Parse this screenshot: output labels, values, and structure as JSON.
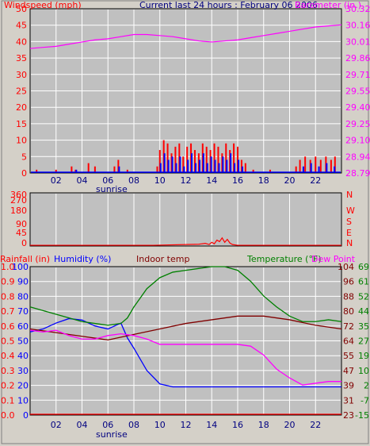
{
  "colors": {
    "window_bg": "#d4d0c8",
    "plot_bg": "#c0c0c0",
    "grid": "#ffffff",
    "wind_gust": "#ff0000",
    "wind_avg": "#0000ff",
    "barometer": "#ff00ff",
    "humidity": "#0000ff",
    "indoor_temp": "#800000",
    "temperature": "#008000",
    "dew_point": "#ff00ff",
    "rainfall": "#ff0000",
    "direction": "#ff0000"
  },
  "header": {
    "left_label": "Windspeed (mph)",
    "center_label": "Current last 24 hours : February 06 2006",
    "right_label": "Barometer (in.)"
  },
  "bottom_header": {
    "rain_label": "Rainfall (in)",
    "humidity_label": "Humidity (%)",
    "indoor_label": "Indoor temp",
    "temp_label": "Temperature (°F)",
    "dew_label": "Dew Point"
  },
  "x_ticks": [
    "02",
    "04",
    "06",
    "08",
    "10",
    "12",
    "14",
    "16",
    "18",
    "20",
    "22"
  ],
  "sunrise_label": "sunrise",
  "chart_data": [
    {
      "type": "line",
      "name_hint": "wind and barometer",
      "x_range": [
        0,
        24
      ],
      "y_left": {
        "label": "Windspeed (mph)",
        "ticks": [
          "0",
          "5",
          "10",
          "15",
          "20",
          "25",
          "30",
          "35",
          "40",
          "45",
          "50"
        ],
        "ylim": [
          0,
          50
        ]
      },
      "y_right": {
        "label": "Barometer (in.)",
        "ticks": [
          "28.79",
          "28.94",
          "29.10",
          "29.25",
          "29.40",
          "29.55",
          "29.71",
          "29.86",
          "30.01",
          "30.16",
          "30.32"
        ],
        "ylim": [
          28.79,
          30.32
        ]
      },
      "series": [
        {
          "name": "Barometer (in.)",
          "axis": "right",
          "x": [
            0,
            1,
            2,
            3,
            4,
            5,
            6,
            7,
            8,
            9,
            10,
            11,
            12,
            13,
            14,
            15,
            16,
            17,
            18,
            19,
            20,
            21,
            22,
            23,
            24
          ],
          "values": [
            29.95,
            29.96,
            29.97,
            29.99,
            30.01,
            30.03,
            30.04,
            30.06,
            30.08,
            30.08,
            30.07,
            30.06,
            30.04,
            30.02,
            30.01,
            30.02,
            30.03,
            30.05,
            30.07,
            30.09,
            30.11,
            30.13,
            30.15,
            30.16,
            30.17
          ]
        },
        {
          "name": "gust",
          "axis": "left",
          "x": [
            0.5,
            2.0,
            3.2,
            3.5,
            4.5,
            5.0,
            6.5,
            6.8,
            7.5,
            9.8,
            10.0,
            10.3,
            10.6,
            10.9,
            11.2,
            11.5,
            11.8,
            12.1,
            12.4,
            12.7,
            13.0,
            13.3,
            13.6,
            13.9,
            14.2,
            14.5,
            14.8,
            15.1,
            15.4,
            15.7,
            16.0,
            16.3,
            16.6,
            17.2,
            18.5,
            20.5,
            20.8,
            21.2,
            21.6,
            22.0,
            22.4,
            22.8,
            23.2,
            23.5
          ],
          "values": [
            1,
            1,
            2,
            1,
            3,
            2,
            2,
            4,
            1,
            2,
            7,
            10,
            9,
            6,
            8,
            9,
            5,
            8,
            9,
            7,
            6,
            9,
            8,
            7,
            9,
            8,
            6,
            9,
            7,
            9,
            8,
            4,
            3,
            1,
            1,
            2,
            4,
            5,
            4,
            5,
            4,
            5,
            4,
            5
          ]
        },
        {
          "name": "average",
          "axis": "left",
          "x": [
            3.5,
            6.8,
            10.0,
            10.3,
            10.6,
            10.9,
            11.2,
            11.5,
            11.8,
            12.1,
            12.4,
            12.7,
            13.0,
            13.3,
            13.6,
            13.9,
            14.2,
            14.5,
            14.8,
            15.1,
            15.4,
            15.7,
            16.0,
            16.3,
            21.0,
            21.6,
            22.2,
            22.8,
            23.4
          ],
          "values": [
            1,
            2,
            3,
            6,
            4,
            5,
            3,
            5,
            2,
            4,
            6,
            3,
            4,
            6,
            3,
            5,
            4,
            3,
            5,
            4,
            6,
            3,
            4,
            2,
            2,
            3,
            2,
            3,
            2
          ]
        }
      ]
    },
    {
      "type": "line",
      "name_hint": "wind direction",
      "y_left": {
        "ticks": [
          "0",
          "45",
          "90",
          "180",
          "270",
          "360"
        ],
        "ylim": [
          0,
          360
        ]
      },
      "y_right": {
        "ticks": [
          "N",
          "W",
          "S",
          "E",
          "N"
        ]
      },
      "series": [
        {
          "name": "direction",
          "x": [
            0,
            9.5,
            13.0,
            13.5,
            13.8,
            14.0,
            14.2,
            14.4,
            14.6,
            14.8,
            15.0,
            15.2,
            15.4,
            15.6,
            16.0,
            24
          ],
          "values": [
            5,
            5,
            12,
            18,
            10,
            25,
            15,
            40,
            30,
            55,
            25,
            45,
            20,
            10,
            5,
            5
          ]
        }
      ]
    },
    {
      "type": "line",
      "name_hint": "temperature humidity rain",
      "y_rain": {
        "ticks": [
          "0.0",
          "0.1",
          "0.2",
          "0.3",
          "0.4",
          "0.5",
          "0.6",
          "0.7",
          "0.8",
          "0.9",
          "1.0"
        ],
        "ylim": [
          0,
          1.0
        ]
      },
      "y_humidity": {
        "ticks": [
          "0",
          "10",
          "20",
          "30",
          "40",
          "50",
          "60",
          "70",
          "80",
          "90",
          "100"
        ],
        "ylim": [
          0,
          100
        ]
      },
      "y_temp": {
        "ticks": [
          "23",
          "31",
          "39",
          "47",
          "55",
          "64",
          "72",
          "80",
          "88",
          "96",
          "104"
        ],
        "ylim": [
          23,
          104
        ]
      },
      "y_dew": {
        "ticks": [
          "-15",
          "-7",
          "2",
          "10",
          "19",
          "27",
          "35",
          "44",
          "52",
          "61",
          "69"
        ],
        "ylim": [
          -15,
          69
        ]
      },
      "series": [
        {
          "name": "Humidity (%)",
          "x": [
            0,
            1,
            2,
            3,
            4,
            5,
            6,
            7,
            7.5,
            8,
            9,
            10,
            10.5,
            11,
            12,
            13,
            14,
            15,
            16,
            17,
            18,
            19,
            20,
            21,
            22,
            23,
            24
          ],
          "values": [
            56,
            58,
            62,
            65,
            64,
            60,
            58,
            62,
            52,
            45,
            30,
            21,
            20,
            19,
            19,
            19,
            19,
            19,
            19,
            19,
            19,
            19,
            19,
            19,
            19,
            19,
            19
          ]
        },
        {
          "name": "Indoor temp",
          "x": [
            0,
            2,
            4,
            6,
            8,
            10,
            12,
            14,
            16,
            18,
            20,
            22,
            24
          ],
          "values": [
            70,
            68,
            66,
            64,
            67,
            70,
            73,
            75,
            77,
            77,
            75,
            72,
            70
          ]
        },
        {
          "name": "Temperature (°F)",
          "x": [
            0,
            1,
            2,
            3,
            4,
            5,
            6,
            7,
            7.5,
            8,
            9,
            10,
            11,
            12,
            13,
            14,
            15,
            16,
            17,
            18,
            19,
            20,
            21,
            22,
            23,
            24
          ],
          "values": [
            82,
            80,
            78,
            76,
            74,
            73,
            72,
            73,
            76,
            82,
            92,
            98,
            101,
            102,
            103,
            104,
            104,
            102,
            96,
            88,
            82,
            77,
            74,
            74,
            75,
            74
          ]
        },
        {
          "name": "Dew Point",
          "x": [
            0,
            1,
            2,
            3,
            4,
            5,
            6,
            7,
            8,
            9,
            10,
            11,
            12,
            13,
            14,
            15,
            16,
            17,
            18,
            19,
            20,
            21,
            22,
            23,
            24
          ],
          "values": [
            33,
            32,
            33,
            30,
            28,
            28,
            30,
            31,
            30,
            28,
            25,
            25,
            25,
            25,
            25,
            25,
            25,
            24,
            19,
            11,
            6,
            2,
            3,
            4,
            4
          ]
        },
        {
          "name": "Rainfall (in)",
          "x": [
            0,
            24
          ],
          "values": [
            0,
            0
          ]
        }
      ]
    }
  ]
}
